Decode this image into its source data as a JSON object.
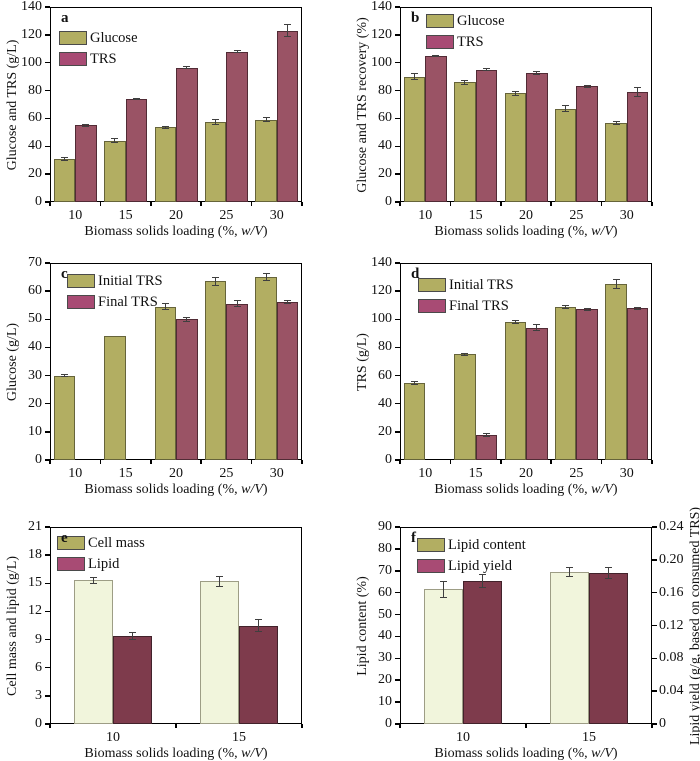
{
  "figure": {
    "background": "#ffffff",
    "xlabel_parts": {
      "prefix": "Biomass solids loading (%, ",
      "italic": "w/V",
      "suffix": ")"
    }
  },
  "chart_data": [
    {
      "panel": "a",
      "type": "bar",
      "ylabel": "Glucose and TRS (g/L)",
      "xlabel": "Biomass solids loading (%, w/V)",
      "ylim": [
        0,
        140
      ],
      "yticks": [
        0,
        20,
        40,
        60,
        80,
        100,
        120,
        140
      ],
      "categories": [
        "10",
        "15",
        "20",
        "25",
        "30"
      ],
      "legend_position": "top-left",
      "legend_offset": [
        9,
        24
      ],
      "grid": false,
      "series": [
        {
          "name": "Glucose",
          "color": "#b2ae62",
          "border": "#66643a",
          "legend_color": "#b2ae62",
          "values": [
            31,
            44,
            53.5,
            57.5,
            59
          ],
          "errors": [
            1,
            1.5,
            1,
            1.5,
            1.5
          ]
        },
        {
          "name": "TRS",
          "color": "#9a5365",
          "border": "#512b35",
          "legend_color": "#a84b74",
          "values": [
            55,
            74,
            96.5,
            108,
            123
          ],
          "errors": [
            0.5,
            0.5,
            1,
            1,
            4.5
          ]
        }
      ]
    },
    {
      "panel": "b",
      "type": "bar",
      "ylabel": "Glucose and TRS recovery (%)",
      "xlabel": "Biomass solids loading (%, w/V)",
      "ylim": [
        0,
        140
      ],
      "yticks": [
        0,
        20,
        40,
        60,
        80,
        100,
        120,
        140
      ],
      "categories": [
        "10",
        "15",
        "20",
        "25",
        "30"
      ],
      "legend_position": "top-left",
      "legend_offset": [
        26,
        7
      ],
      "grid": false,
      "series": [
        {
          "name": "Glucose",
          "color": "#b2ae62",
          "border": "#66643a",
          "legend_color": "#b2ae62",
          "values": [
            90,
            86,
            78,
            67,
            57
          ],
          "errors": [
            2,
            1.5,
            1.5,
            2,
            1
          ]
        },
        {
          "name": "TRS",
          "color": "#9a5365",
          "border": "#512b35",
          "legend_color": "#a84b74",
          "values": [
            105,
            95,
            92.5,
            83,
            79
          ],
          "errors": [
            0.5,
            0.5,
            1,
            0.5,
            3
          ]
        }
      ]
    },
    {
      "panel": "c",
      "type": "bar",
      "ylabel": "Glucose (g/L)",
      "xlabel": "Biomass solids loading (%, w/V)",
      "ylim": [
        0,
        70
      ],
      "yticks": [
        0,
        10,
        20,
        30,
        40,
        50,
        60,
        70
      ],
      "categories": [
        "10",
        "15",
        "20",
        "25",
        "30"
      ],
      "legend_position": "top-left",
      "legend_offset": [
        17,
        11
      ],
      "grid": false,
      "series": [
        {
          "name": "Initial TRS",
          "color": "#b2ae62",
          "border": "#66643a",
          "legend_color": "#b2ae62",
          "values": [
            30,
            44,
            54.5,
            63.5,
            65
          ],
          "errors": [
            0.5,
            0,
            1,
            1.5,
            1.2
          ]
        },
        {
          "name": "Final TRS",
          "color": "#9a5365",
          "border": "#512b35",
          "legend_color": "#a84b74",
          "values": [
            0,
            0,
            50,
            55.5,
            56
          ],
          "errors": [
            0,
            0,
            0.8,
            1,
            0.5
          ]
        }
      ]
    },
    {
      "panel": "d",
      "type": "bar",
      "ylabel": "TRS (g/L)",
      "xlabel": "Biomass solids loading (%, w/V)",
      "ylim": [
        0,
        140
      ],
      "yticks": [
        0,
        20,
        40,
        60,
        80,
        100,
        120,
        140
      ],
      "categories": [
        "10",
        "15",
        "20",
        "25",
        "30"
      ],
      "legend_position": "top-left",
      "legend_offset": [
        18,
        15
      ],
      "grid": false,
      "series": [
        {
          "name": "Initial TRS",
          "color": "#b2ae62",
          "border": "#66643a",
          "legend_color": "#b2ae62",
          "values": [
            54.5,
            75,
            98,
            109,
            125
          ],
          "errors": [
            1,
            0.8,
            1,
            1,
            3
          ]
        },
        {
          "name": "Final TRS",
          "color": "#9a5365",
          "border": "#512b35",
          "legend_color": "#a84b74",
          "values": [
            0,
            17.5,
            94,
            107,
            108
          ],
          "errors": [
            0,
            1,
            2,
            0.7,
            0.7
          ]
        }
      ]
    },
    {
      "panel": "e",
      "type": "bar",
      "ylabel": "Cell mass and lipid (g/L)",
      "xlabel": "Biomass solids loading (%, w/V)",
      "ylim": [
        0,
        21
      ],
      "yticks": [
        0,
        3,
        6,
        9,
        12,
        15,
        18,
        21
      ],
      "categories": [
        "10",
        "15"
      ],
      "legend_position": "top-left",
      "legend_offset": [
        7,
        9
      ],
      "grid": false,
      "series": [
        {
          "name": "Cell mass",
          "color": "#f1f5dc",
          "border": "#9d9d85",
          "legend_color": "#b2ae62",
          "values": [
            15.3,
            15.2
          ],
          "errors": [
            0.35,
            0.5
          ]
        },
        {
          "name": "Lipid",
          "color": "#7e3b4c",
          "border": "#42222b",
          "legend_color": "#a84b74",
          "values": [
            9.4,
            10.5
          ],
          "errors": [
            0.35,
            0.6
          ]
        }
      ]
    },
    {
      "panel": "f",
      "type": "bar",
      "ylabel": "Lipid content (%)",
      "y2label": "Lipid yield (g/g, based on consumed TRS)",
      "xlabel": "Biomass solids loading (%, w/V)",
      "ylim": [
        0,
        90
      ],
      "yticks": [
        0,
        10,
        20,
        30,
        40,
        50,
        60,
        70,
        80,
        90
      ],
      "y2lim": [
        0,
        0.24
      ],
      "y2ticks": [
        "0",
        "0.04",
        "0.08",
        "0.12",
        "0.16",
        "0.20",
        "0.24"
      ],
      "categories": [
        "10",
        "15"
      ],
      "legend_position": "top-left",
      "legend_offset": [
        17,
        11
      ],
      "grid": false,
      "series": [
        {
          "name": "Lipid content",
          "color": "#f1f5dc",
          "border": "#9d9d85",
          "legend_color": "#b2ae62",
          "values": [
            61.5,
            69.5
          ],
          "errors": [
            3.5,
            2
          ]
        },
        {
          "name": "Lipid yield",
          "color": "#7e3b4c",
          "border": "#42222b",
          "legend_color": "#a84b74",
          "axis": "y2",
          "values": [
            0.174,
            0.184
          ],
          "errors": [
            0.008,
            0.007
          ]
        }
      ]
    }
  ]
}
